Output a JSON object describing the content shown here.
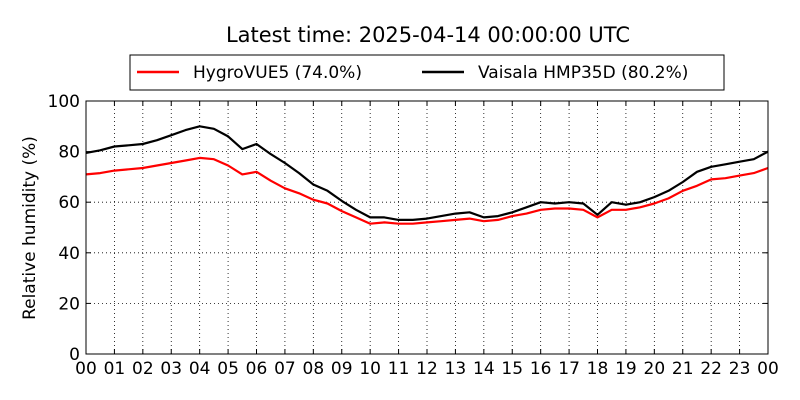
{
  "chart_data": {
    "type": "line",
    "title": "Latest time: 2025-04-14 00:00:00 UTC",
    "xlabel": "",
    "ylabel": "Relative humidity (%)",
    "xlim": [
      0,
      24
    ],
    "ylim": [
      0,
      100
    ],
    "grid": true,
    "legend_position": "top-center",
    "x_tick_labels": [
      "00",
      "01",
      "02",
      "03",
      "04",
      "05",
      "06",
      "07",
      "08",
      "09",
      "10",
      "11",
      "12",
      "13",
      "14",
      "15",
      "16",
      "17",
      "18",
      "19",
      "20",
      "21",
      "22",
      "23",
      "00"
    ],
    "y_tick_labels": [
      "0",
      "20",
      "40",
      "60",
      "80",
      "100"
    ],
    "x": [
      0,
      0.5,
      1,
      1.5,
      2,
      2.5,
      3,
      3.5,
      4,
      4.5,
      5,
      5.5,
      6,
      6.5,
      7,
      7.5,
      8,
      8.5,
      9,
      9.5,
      10,
      10.5,
      11,
      11.5,
      12,
      12.5,
      13,
      13.5,
      14,
      14.5,
      15,
      15.5,
      16,
      16.5,
      17,
      17.5,
      18,
      18.5,
      19,
      19.5,
      20,
      20.5,
      21,
      21.5,
      22,
      22.5,
      23,
      23.5,
      24
    ],
    "series": [
      {
        "name": "HygroVUE5 (74.0%)",
        "color": "#ff0000",
        "values": [
          71,
          71.5,
          72.5,
          73,
          73.5,
          74.5,
          75.5,
          76.5,
          77.5,
          77,
          74.5,
          71,
          72,
          68.5,
          65.5,
          63.5,
          61,
          59.5,
          56.5,
          54,
          51.5,
          52,
          51.5,
          51.5,
          52,
          52.5,
          53,
          53.5,
          52.5,
          53,
          54.5,
          55.5,
          57,
          57.5,
          57.5,
          57,
          54,
          57,
          57,
          58,
          59.5,
          61.5,
          64.5,
          66.5,
          69,
          69.5,
          70.5,
          71.5,
          73.5
        ]
      },
      {
        "name": "Vaisala HMP35D (80.2%)",
        "color": "#000000",
        "values": [
          79.5,
          80.5,
          82,
          82.5,
          83,
          84.5,
          86.5,
          88.5,
          90,
          89,
          86,
          81,
          83,
          79,
          75.5,
          71.5,
          67,
          64.5,
          60.5,
          57,
          54,
          54,
          53,
          53,
          53.5,
          54.5,
          55.5,
          56,
          54,
          54.5,
          56,
          58,
          60,
          59.5,
          60,
          59.5,
          55,
          60,
          59,
          60,
          62,
          64.5,
          68,
          72,
          74,
          75,
          76,
          77,
          80
        ]
      }
    ]
  }
}
